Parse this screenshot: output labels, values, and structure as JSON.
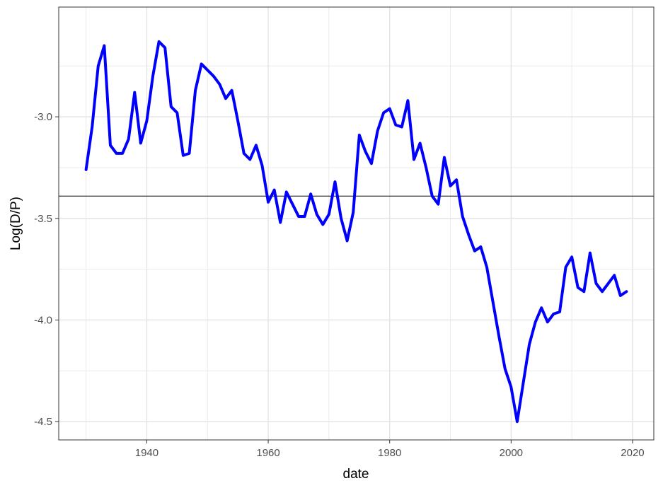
{
  "chart_data": {
    "type": "line",
    "xlabel": "date",
    "ylabel": "Log(D/P)",
    "xlim": [
      1925.5,
      2023.5
    ],
    "ylim": [
      -4.59,
      -2.46
    ],
    "x_ticks": [
      1940,
      1960,
      1980,
      2000,
      2020
    ],
    "x_tick_labels": [
      "1940",
      "1960",
      "1980",
      "2000",
      "2020"
    ],
    "y_ticks": [
      -3.0,
      -3.5,
      -4.0,
      -4.5
    ],
    "y_tick_labels": [
      "-3.0",
      "-3.5",
      "-4.0",
      "-4.5"
    ],
    "grid": true,
    "hline": -3.39,
    "series": [
      {
        "color": "#0000ff",
        "x": [
          1930,
          1931,
          1932,
          1933,
          1934,
          1935,
          1936,
          1937,
          1938,
          1939,
          1940,
          1941,
          1942,
          1943,
          1944,
          1945,
          1946,
          1947,
          1948,
          1949,
          1950,
          1951,
          1952,
          1953,
          1954,
          1955,
          1956,
          1957,
          1958,
          1959,
          1960,
          1961,
          1962,
          1963,
          1964,
          1965,
          1966,
          1967,
          1968,
          1969,
          1970,
          1971,
          1972,
          1973,
          1974,
          1975,
          1976,
          1977,
          1978,
          1979,
          1980,
          1981,
          1982,
          1983,
          1984,
          1985,
          1986,
          1987,
          1988,
          1989,
          1990,
          1991,
          1992,
          1993,
          1994,
          1995,
          1996,
          1997,
          1998,
          1999,
          2000,
          2001,
          2002,
          2003,
          2004,
          2005,
          2006,
          2007,
          2008,
          2009,
          2010,
          2011,
          2012,
          2013,
          2014,
          2015,
          2016,
          2017,
          2018,
          2019
        ],
        "values": [
          -3.26,
          -3.05,
          -2.75,
          -2.65,
          -3.14,
          -3.18,
          -3.18,
          -3.11,
          -2.88,
          -3.13,
          -3.02,
          -2.8,
          -2.63,
          -2.66,
          -2.95,
          -2.98,
          -3.19,
          -3.18,
          -2.87,
          -2.74,
          -2.77,
          -2.8,
          -2.84,
          -2.91,
          -2.87,
          -3.02,
          -3.18,
          -3.21,
          -3.14,
          -3.24,
          -3.42,
          -3.36,
          -3.52,
          -3.37,
          -3.43,
          -3.49,
          -3.49,
          -3.38,
          -3.48,
          -3.53,
          -3.48,
          -3.32,
          -3.5,
          -3.61,
          -3.47,
          -3.09,
          -3.17,
          -3.23,
          -3.07,
          -2.98,
          -2.96,
          -3.04,
          -3.05,
          -2.92,
          -3.21,
          -3.13,
          -3.25,
          -3.39,
          -3.43,
          -3.2,
          -3.34,
          -3.31,
          -3.49,
          -3.58,
          -3.66,
          -3.64,
          -3.74,
          -3.91,
          -4.08,
          -4.24,
          -4.33,
          -4.5,
          -4.31,
          -4.12,
          -4.01,
          -3.94,
          -4.01,
          -3.97,
          -3.96,
          -3.74,
          -3.69,
          -3.84,
          -3.86,
          -3.67,
          -3.82,
          -3.86,
          -3.82,
          -3.78,
          -3.88,
          -3.86
        ]
      }
    ]
  }
}
